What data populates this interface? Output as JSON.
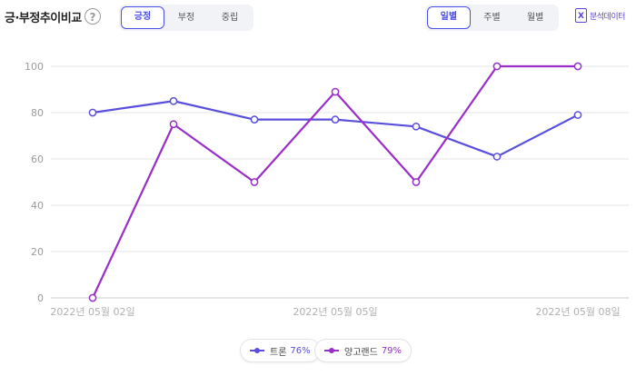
{
  "header": {
    "title": "긍·부정추이비교",
    "help_label": "?",
    "sentiment_tabs": [
      "긍정",
      "부정",
      "중립"
    ],
    "sentiment_active": "긍정",
    "period_tabs": [
      "일별",
      "주별",
      "월별"
    ],
    "period_active": "일별",
    "export_icon_glyph": "X",
    "export_label": "분석데이터"
  },
  "chart_data": {
    "type": "line",
    "x": [
      "2022년 05월 02일",
      "2022년 05월 03일",
      "2022년 05월 04일",
      "2022년 05월 05일",
      "2022년 05월 06일",
      "2022년 05월 07일",
      "2022년 05월 08일"
    ],
    "x_tick_labels": [
      "2022년 05월 02일",
      "",
      "",
      "2022년 05월 05일",
      "",
      "",
      "2022년 05월 08일"
    ],
    "ylim": [
      0,
      100
    ],
    "yticks": [
      0,
      20,
      40,
      60,
      80,
      100
    ],
    "grid": true,
    "legend": "bottom-center",
    "series": [
      {
        "name": "트론",
        "pct": "76%",
        "color": "#5a4fdc",
        "values": [
          80,
          85,
          77,
          77,
          74,
          61,
          79
        ]
      },
      {
        "name": "양고랜드",
        "pct": "79%",
        "color": "#9a2ec8",
        "values": [
          0,
          75,
          50,
          89,
          50,
          100,
          100
        ]
      }
    ]
  }
}
